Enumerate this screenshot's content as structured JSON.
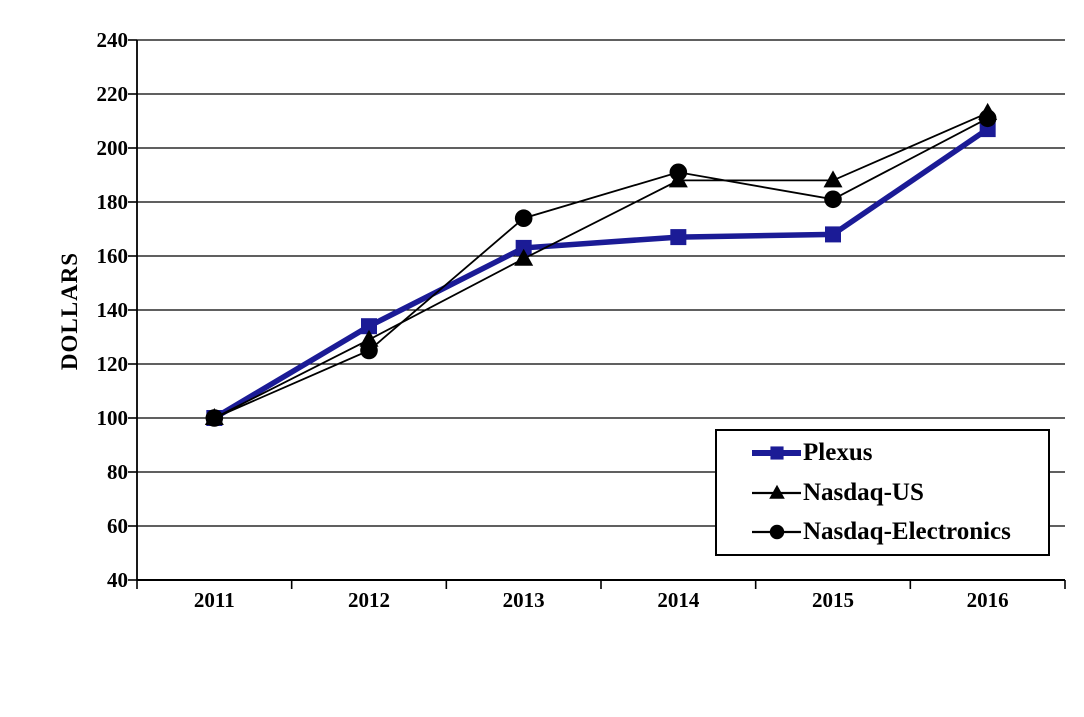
{
  "chart_data": {
    "type": "line",
    "title": "",
    "xlabel": "",
    "ylabel": "DOLLARS",
    "x": [
      "2011",
      "2012",
      "2013",
      "2014",
      "2015",
      "2016"
    ],
    "ylim": [
      40,
      240
    ],
    "ytick_step": 20,
    "grid": "horizontal-gridlines-on",
    "legend_position": "inside-bottom-right-boxed",
    "axis_color": "#000000",
    "background_color": "#ffffff",
    "series": [
      {
        "name": "Plexus",
        "values": [
          100,
          134,
          163,
          167,
          168,
          207
        ],
        "color": "#1b1b96",
        "marker": "square",
        "line_width": 5.5
      },
      {
        "name": "Nasdaq-US",
        "values": [
          100,
          129,
          159,
          188,
          188,
          213
        ],
        "color": "#000000",
        "marker": "triangle",
        "line_width": 1.8
      },
      {
        "name": "Nasdaq-Electronics",
        "values": [
          100,
          125,
          174,
          191,
          181,
          211
        ],
        "color": "#000000",
        "marker": "circle",
        "line_width": 1.8
      }
    ]
  }
}
